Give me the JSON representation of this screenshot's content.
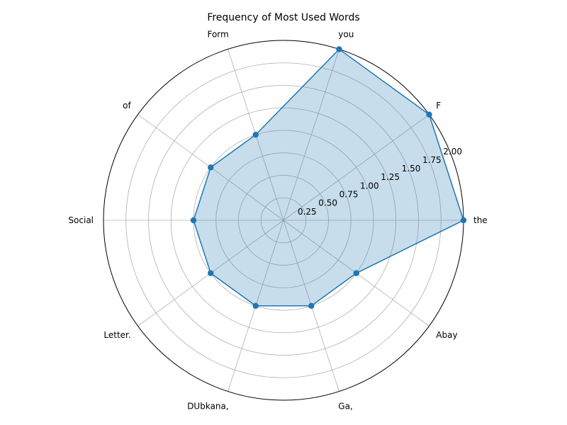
{
  "chart_data": {
    "type": "radar",
    "title": "Frequency of Most Used Words",
    "categories": [
      "the",
      "F",
      "you",
      "Form",
      "of",
      "Social",
      "Letter.",
      "DUbkana,",
      "Ga,",
      "Abay"
    ],
    "values": [
      2,
      2,
      2,
      1,
      1,
      1,
      1,
      1,
      1,
      1
    ],
    "rlim": [
      0,
      2
    ],
    "rticks": [
      0.25,
      0.5,
      0.75,
      1.0,
      1.25,
      1.5,
      1.75,
      2.0
    ],
    "rtick_labels": [
      "0.25",
      "0.50",
      "0.75",
      "1.00",
      "1.25",
      "1.50",
      "1.75",
      "2.00"
    ],
    "grid": true,
    "colors": {
      "line": "#1f77b4",
      "fill": "#1f77b4",
      "grid": "#b0b0b0",
      "frame": "#000000"
    }
  }
}
